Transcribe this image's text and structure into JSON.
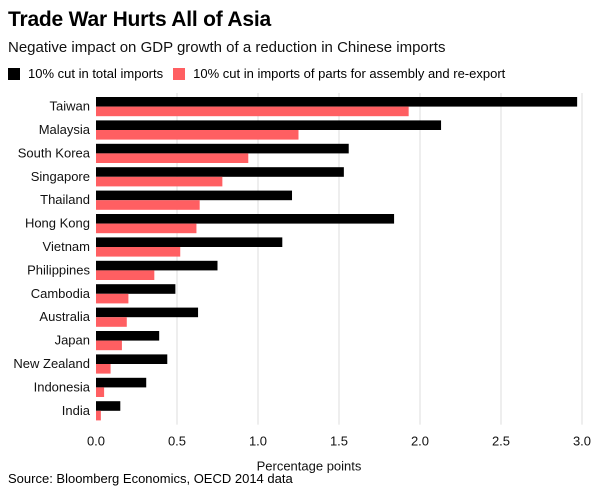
{
  "header": {
    "title": "Trade War Hurts All of Asia",
    "subtitle": "Negative impact on GDP growth of a reduction in Chinese imports"
  },
  "source": "Source: Bloomberg Economics, OECD 2014 data",
  "chart_data": {
    "type": "bar",
    "orientation": "horizontal",
    "title": "Trade War Hurts All of Asia",
    "subtitle": "Negative impact on GDP growth of a reduction in Chinese imports",
    "xlabel": "Percentage points",
    "ylabel": "",
    "xlim": [
      0,
      3.0
    ],
    "xticks": [
      "0.0",
      "0.5",
      "1.0",
      "1.5",
      "2.0",
      "2.5",
      "3.0"
    ],
    "xtick_values": [
      0,
      0.5,
      1.0,
      1.5,
      2.0,
      2.5,
      3.0
    ],
    "grid": "vertical",
    "legend_position": "top-left",
    "categories": [
      "Taiwan",
      "Malaysia",
      "South Korea",
      "Singapore",
      "Thailand",
      "Hong Kong",
      "Vietnam",
      "Philippines",
      "Cambodia",
      "Australia",
      "Japan",
      "New Zealand",
      "Indonesia",
      "India"
    ],
    "series": [
      {
        "name": "10% cut in total imports",
        "color": "#000000",
        "values": [
          2.97,
          2.13,
          1.56,
          1.53,
          1.21,
          1.84,
          1.15,
          0.75,
          0.49,
          0.63,
          0.39,
          0.44,
          0.31,
          0.15
        ]
      },
      {
        "name": "10% cut in imports of parts for assembly and re-export",
        "color": "#ff5f62",
        "values": [
          1.93,
          1.25,
          0.94,
          0.78,
          0.64,
          0.62,
          0.52,
          0.36,
          0.2,
          0.19,
          0.16,
          0.09,
          0.05,
          0.03
        ]
      }
    ]
  }
}
